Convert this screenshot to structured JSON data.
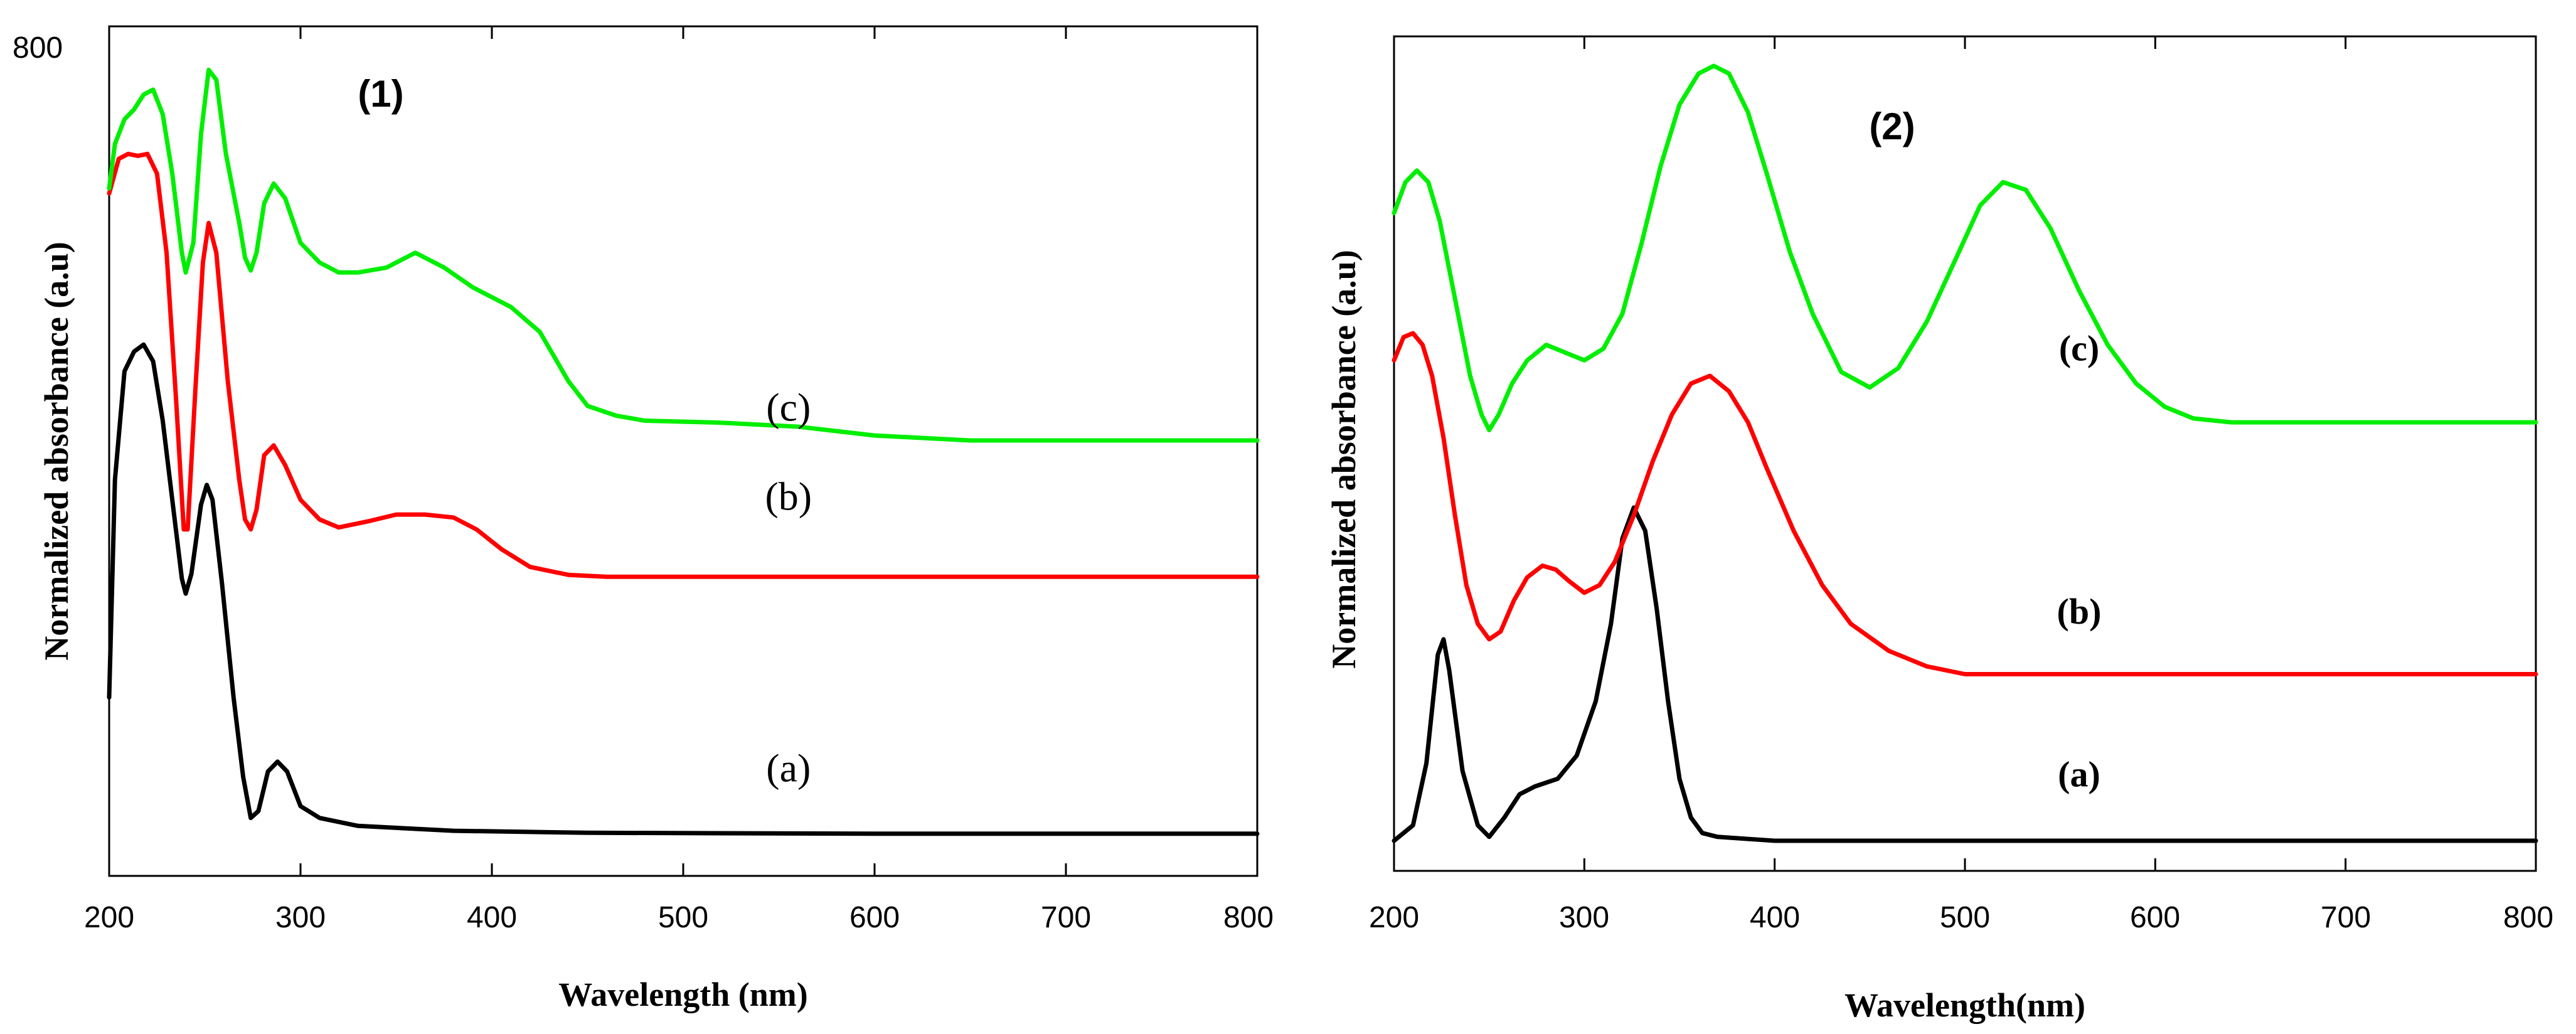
{
  "colors": {
    "a": "#000000",
    "b": "#ff0000",
    "c": "#00ee00"
  },
  "chart_data": [
    {
      "type": "line",
      "panel_label": "(1)",
      "title": "",
      "xlabel": "Wavelength (nm)",
      "ylabel": "Normalized absorbance (a.u)",
      "xlim": [
        200,
        800
      ],
      "ylim": [
        0,
        800
      ],
      "x_ticks": [
        "200",
        "300",
        "400",
        "500",
        "600",
        "700",
        "800"
      ],
      "y_ticks": [
        "800"
      ],
      "grid": false,
      "series": [
        {
          "name": "(a)",
          "color": "#000000",
          "label_at": [
            555,
            55
          ],
          "points": [
            [
              200,
              140
            ],
            [
              203,
              360
            ],
            [
              208,
              470
            ],
            [
              213,
              490
            ],
            [
              218,
              497
            ],
            [
              223,
              480
            ],
            [
              228,
              420
            ],
            [
              233,
              340
            ],
            [
              238,
              260
            ],
            [
              240,
              245
            ],
            [
              243,
              265
            ],
            [
              248,
              335
            ],
            [
              251,
              355
            ],
            [
              254,
              340
            ],
            [
              259,
              255
            ],
            [
              265,
              140
            ],
            [
              270,
              60
            ],
            [
              274,
              18
            ],
            [
              278,
              25
            ],
            [
              283,
              65
            ],
            [
              288,
              75
            ],
            [
              293,
              65
            ],
            [
              300,
              30
            ],
            [
              310,
              18
            ],
            [
              330,
              10
            ],
            [
              380,
              5
            ],
            [
              450,
              3
            ],
            [
              600,
              2
            ],
            [
              800,
              2
            ]
          ]
        },
        {
          "name": "(b)",
          "color": "#ff0000",
          "label_at": [
            555,
            330
          ],
          "points": [
            [
              200,
              650
            ],
            [
              205,
              685
            ],
            [
              210,
              690
            ],
            [
              215,
              688
            ],
            [
              220,
              690
            ],
            [
              225,
              670
            ],
            [
              230,
              590
            ],
            [
              235,
              440
            ],
            [
              239,
              310
            ],
            [
              241,
              310
            ],
            [
              245,
              450
            ],
            [
              249,
              580
            ],
            [
              252,
              620
            ],
            [
              256,
              590
            ],
            [
              262,
              460
            ],
            [
              268,
              360
            ],
            [
              271,
              320
            ],
            [
              274,
              310
            ],
            [
              277,
              330
            ],
            [
              281,
              385
            ],
            [
              286,
              395
            ],
            [
              292,
              375
            ],
            [
              300,
              340
            ],
            [
              310,
              320
            ],
            [
              320,
              312
            ],
            [
              335,
              318
            ],
            [
              350,
              325
            ],
            [
              365,
              325
            ],
            [
              380,
              322
            ],
            [
              392,
              310
            ],
            [
              405,
              290
            ],
            [
              420,
              272
            ],
            [
              440,
              264
            ],
            [
              460,
              262
            ],
            [
              500,
              262
            ],
            [
              800,
              262
            ]
          ]
        },
        {
          "name": "(c)",
          "color": "#00ee00",
          "label_at": [
            555,
            420
          ],
          "points": [
            [
              200,
              655
            ],
            [
              203,
              700
            ],
            [
              208,
              725
            ],
            [
              213,
              735
            ],
            [
              218,
              750
            ],
            [
              223,
              755
            ],
            [
              228,
              730
            ],
            [
              233,
              670
            ],
            [
              238,
              590
            ],
            [
              240,
              570
            ],
            [
              244,
              600
            ],
            [
              248,
              710
            ],
            [
              252,
              775
            ],
            [
              256,
              765
            ],
            [
              261,
              690
            ],
            [
              268,
              620
            ],
            [
              271,
              585
            ],
            [
              274,
              572
            ],
            [
              277,
              590
            ],
            [
              281,
              640
            ],
            [
              286,
              660
            ],
            [
              292,
              645
            ],
            [
              300,
              600
            ],
            [
              310,
              580
            ],
            [
              320,
              570
            ],
            [
              330,
              570
            ],
            [
              345,
              575
            ],
            [
              360,
              590
            ],
            [
              375,
              575
            ],
            [
              390,
              555
            ],
            [
              410,
              535
            ],
            [
              425,
              510
            ],
            [
              440,
              460
            ],
            [
              450,
              435
            ],
            [
              465,
              425
            ],
            [
              480,
              420
            ],
            [
              520,
              418
            ],
            [
              560,
              414
            ],
            [
              600,
              405
            ],
            [
              650,
              400
            ],
            [
              700,
              400
            ],
            [
              800,
              400
            ]
          ]
        }
      ]
    },
    {
      "type": "line",
      "panel_label": "(2)",
      "title": "",
      "xlabel": "Wavelength(nm)",
      "ylabel": "Normalized absorbance (a.u)",
      "xlim": [
        200,
        800
      ],
      "ylim": [
        0,
        100
      ],
      "x_ticks": [
        "200",
        "300",
        "400",
        "500",
        "600",
        "700",
        "800"
      ],
      "y_ticks": [],
      "grid": false,
      "series": [
        {
          "name": "(a)",
          "color": "#000000",
          "label_at": [
            560,
            7
          ],
          "points": [
            [
              200,
              0
            ],
            [
              210,
              2
            ],
            [
              217,
              10
            ],
            [
              223,
              24
            ],
            [
              226,
              26
            ],
            [
              229,
              22
            ],
            [
              236,
              9
            ],
            [
              244,
              2
            ],
            [
              250,
              0.5
            ],
            [
              258,
              3
            ],
            [
              266,
              6
            ],
            [
              274,
              7
            ],
            [
              286,
              8
            ],
            [
              296,
              11
            ],
            [
              306,
              18
            ],
            [
              314,
              28
            ],
            [
              320,
              39
            ],
            [
              326,
              43
            ],
            [
              332,
              40
            ],
            [
              338,
              30
            ],
            [
              344,
              18
            ],
            [
              350,
              8
            ],
            [
              356,
              3
            ],
            [
              362,
              1
            ],
            [
              370,
              0.5
            ],
            [
              400,
              0
            ],
            [
              800,
              0
            ]
          ]
        },
        {
          "name": "(b)",
          "color": "#ff0000",
          "label_at": [
            560,
            28
          ],
          "points": [
            [
              200,
              62
            ],
            [
              205,
              65
            ],
            [
              210,
              65.5
            ],
            [
              215,
              64
            ],
            [
              220,
              60
            ],
            [
              226,
              52
            ],
            [
              232,
              42
            ],
            [
              238,
              33
            ],
            [
              244,
              28
            ],
            [
              250,
              26
            ],
            [
              256,
              27
            ],
            [
              263,
              31
            ],
            [
              270,
              34
            ],
            [
              278,
              35.5
            ],
            [
              285,
              35
            ],
            [
              292,
              33.5
            ],
            [
              300,
              32
            ],
            [
              308,
              33
            ],
            [
              316,
              36
            ],
            [
              326,
              42
            ],
            [
              336,
              49
            ],
            [
              346,
              55
            ],
            [
              356,
              59
            ],
            [
              366,
              60
            ],
            [
              376,
              58
            ],
            [
              386,
              54
            ],
            [
              396,
              48
            ],
            [
              410,
              40
            ],
            [
              425,
              33
            ],
            [
              440,
              28
            ],
            [
              460,
              24.5
            ],
            [
              480,
              22.5
            ],
            [
              500,
              21.5
            ],
            [
              540,
              21.5
            ],
            [
              800,
              21.5
            ]
          ]
        },
        {
          "name": "(c)",
          "color": "#00ee00",
          "label_at": [
            560,
            62
          ],
          "points": [
            [
              200,
              81
            ],
            [
              206,
              85
            ],
            [
              212,
              86.5
            ],
            [
              218,
              85
            ],
            [
              224,
              80
            ],
            [
              232,
              70
            ],
            [
              240,
              60
            ],
            [
              246,
              55
            ],
            [
              250,
              53
            ],
            [
              255,
              55
            ],
            [
              262,
              59
            ],
            [
              270,
              62
            ],
            [
              280,
              64
            ],
            [
              290,
              63
            ],
            [
              300,
              62
            ],
            [
              310,
              63.5
            ],
            [
              320,
              68
            ],
            [
              330,
              77
            ],
            [
              340,
              87
            ],
            [
              350,
              95
            ],
            [
              360,
              99
            ],
            [
              368,
              100
            ],
            [
              376,
              99
            ],
            [
              386,
              94
            ],
            [
              396,
              86
            ],
            [
              408,
              76
            ],
            [
              420,
              68
            ],
            [
              435,
              60.5
            ],
            [
              450,
              58.5
            ],
            [
              465,
              61
            ],
            [
              480,
              67
            ],
            [
              495,
              75
            ],
            [
              508,
              82
            ],
            [
              520,
              85
            ],
            [
              532,
              84
            ],
            [
              545,
              79
            ],
            [
              560,
              71
            ],
            [
              575,
              64
            ],
            [
              590,
              59
            ],
            [
              605,
              56
            ],
            [
              620,
              54.5
            ],
            [
              640,
              54
            ],
            [
              700,
              54
            ],
            [
              800,
              54
            ]
          ]
        }
      ]
    }
  ]
}
